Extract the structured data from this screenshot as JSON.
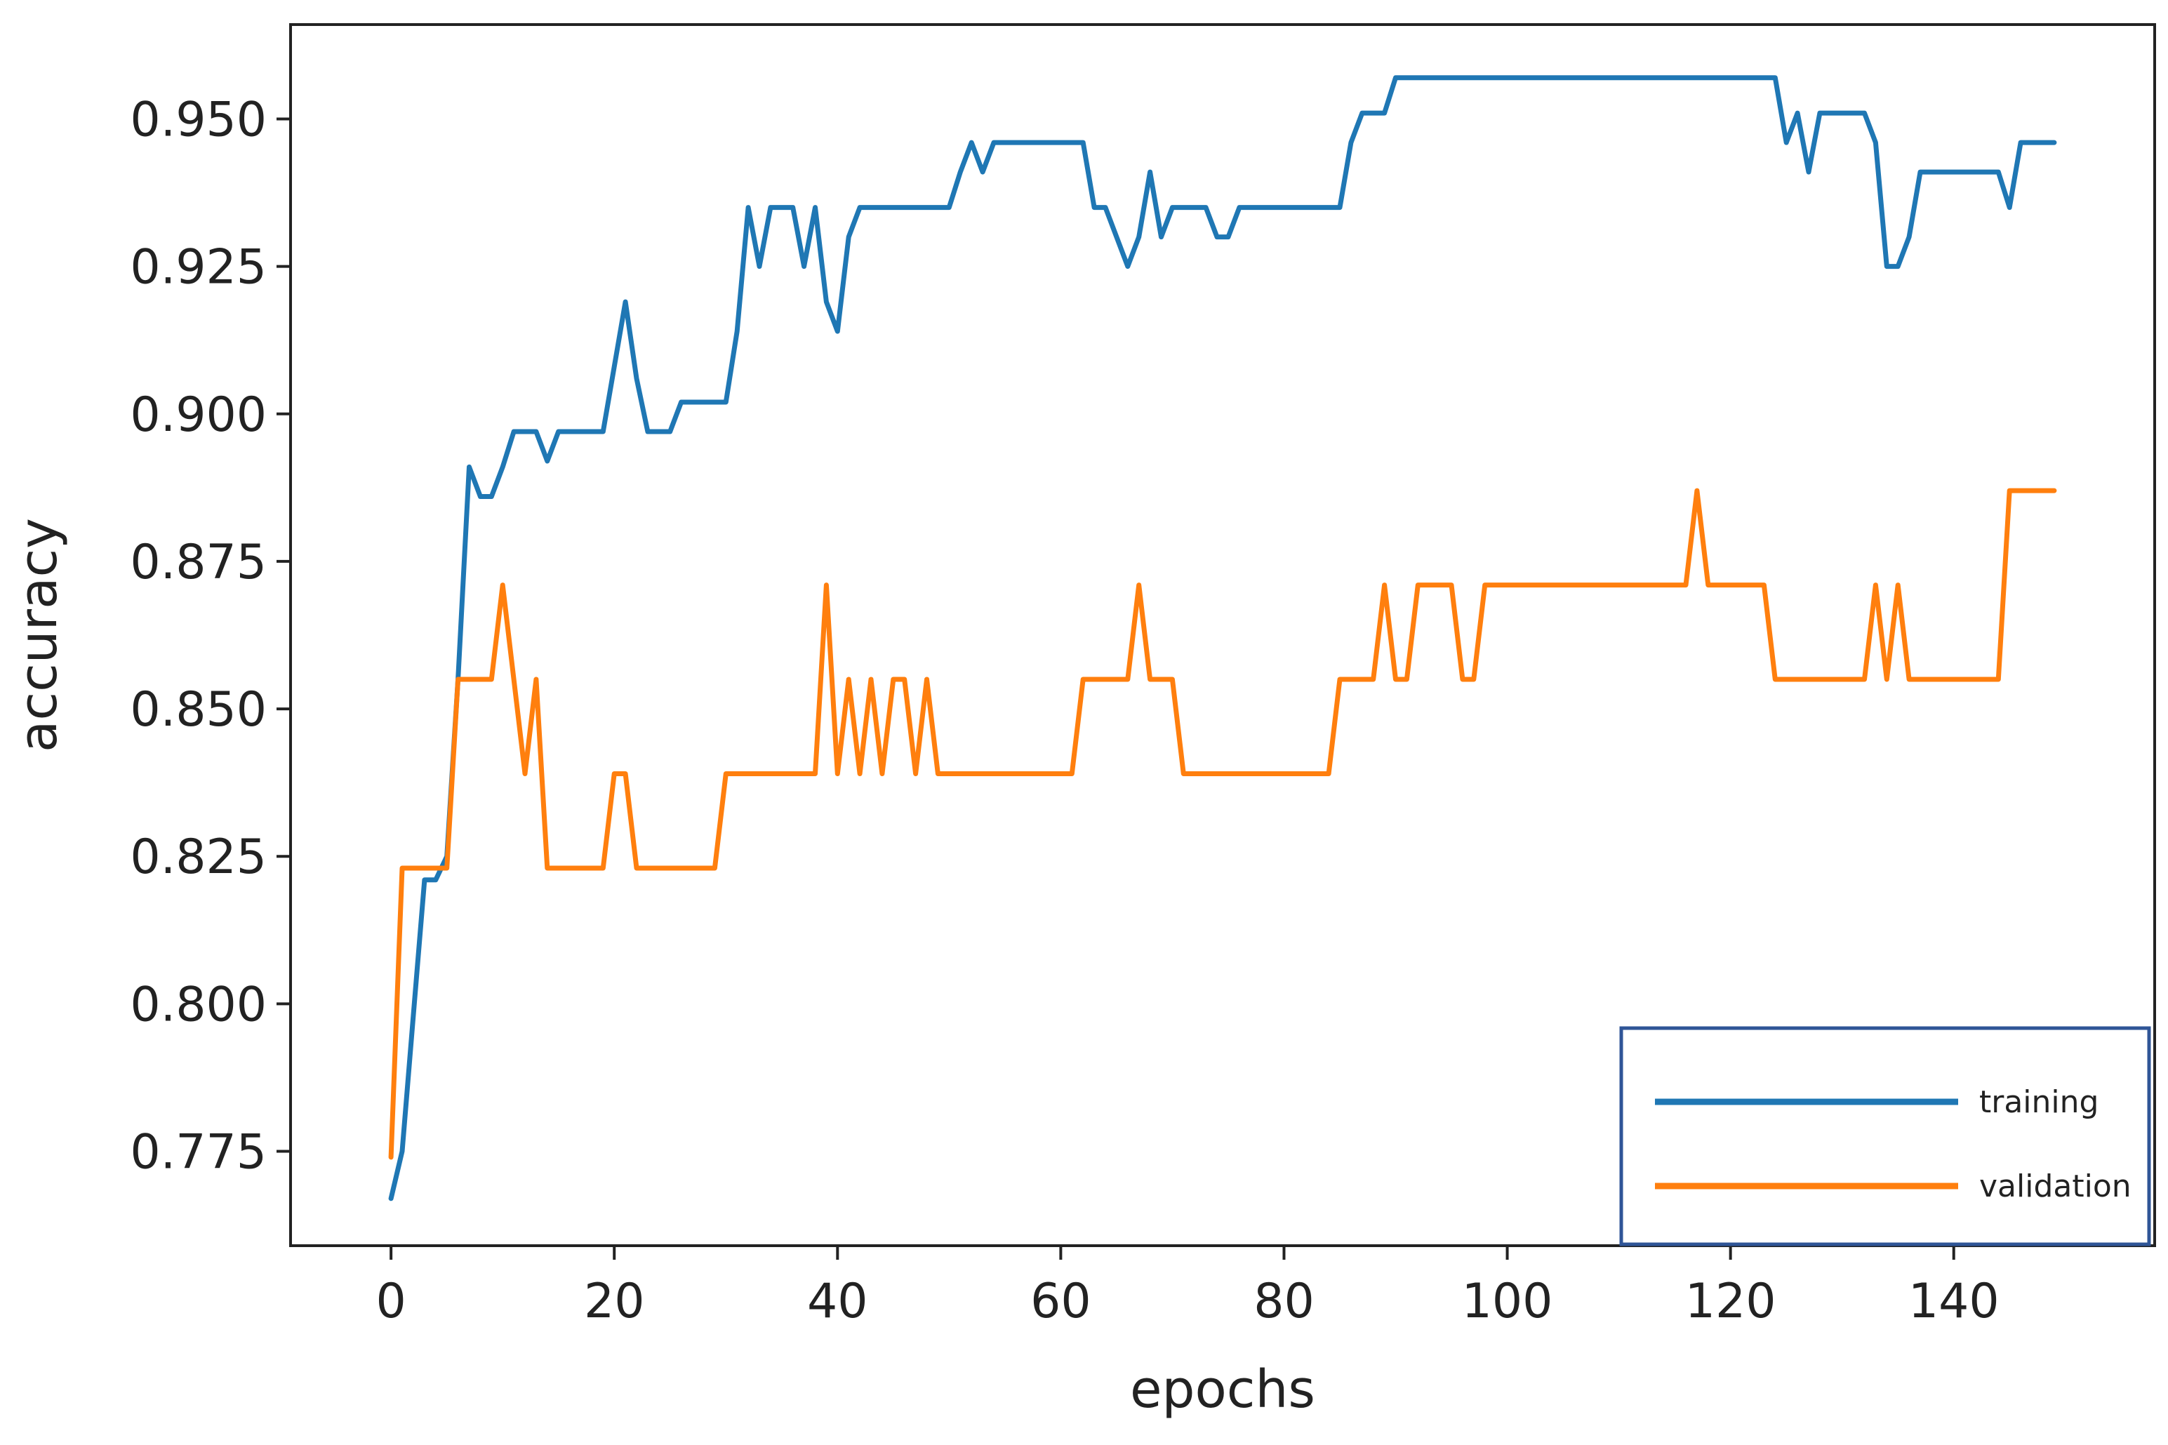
{
  "chart_data": {
    "type": "line",
    "title": "",
    "xlabel": "epochs",
    "ylabel": "accuracy",
    "xlim": [
      -9,
      158
    ],
    "ylim": [
      0.759,
      0.966
    ],
    "xticks": [
      0,
      20,
      40,
      60,
      80,
      100,
      120,
      140
    ],
    "xtick_labels": [
      "0",
      "20",
      "40",
      "60",
      "80",
      "100",
      "120",
      "140"
    ],
    "yticks": [
      0.775,
      0.8,
      0.825,
      0.85,
      0.875,
      0.9,
      0.925,
      0.95
    ],
    "ytick_labels": [
      "0.775",
      "0.800",
      "0.825",
      "0.850",
      "0.875",
      "0.900",
      "0.925",
      "0.950"
    ],
    "grid": false,
    "legend_position": "bottom-right",
    "series": [
      {
        "name": "training",
        "color": "#1f77b4",
        "x": [
          0,
          1,
          2,
          3,
          4,
          5,
          6,
          7,
          8,
          9,
          10,
          11,
          12,
          13,
          14,
          15,
          16,
          17,
          18,
          19,
          20,
          21,
          22,
          23,
          24,
          25,
          26,
          27,
          28,
          29,
          30,
          31,
          32,
          33,
          34,
          35,
          36,
          37,
          38,
          39,
          40,
          41,
          42,
          43,
          44,
          45,
          46,
          47,
          48,
          49,
          50,
          51,
          52,
          53,
          54,
          55,
          56,
          57,
          58,
          59,
          60,
          61,
          62,
          63,
          64,
          65,
          66,
          67,
          68,
          69,
          70,
          71,
          72,
          73,
          74,
          75,
          76,
          77,
          78,
          79,
          80,
          81,
          82,
          83,
          84,
          85,
          86,
          87,
          88,
          89,
          90,
          91,
          92,
          93,
          94,
          95,
          96,
          97,
          98,
          99,
          100,
          101,
          102,
          103,
          104,
          105,
          106,
          107,
          108,
          109,
          110,
          111,
          112,
          113,
          114,
          115,
          116,
          117,
          118,
          119,
          120,
          121,
          122,
          123,
          124,
          125,
          126,
          127,
          128,
          129,
          130,
          131,
          132,
          133,
          134,
          135,
          136,
          137,
          138,
          139,
          140,
          141,
          142,
          143,
          144,
          145,
          146,
          147,
          148,
          149
        ],
        "y": [
          0.767,
          0.775,
          0.798,
          0.821,
          0.821,
          0.825,
          0.855,
          0.891,
          0.886,
          0.886,
          0.891,
          0.897,
          0.897,
          0.897,
          0.892,
          0.897,
          0.897,
          0.897,
          0.897,
          0.897,
          0.908,
          0.919,
          0.906,
          0.897,
          0.897,
          0.897,
          0.902,
          0.902,
          0.902,
          0.902,
          0.902,
          0.914,
          0.935,
          0.925,
          0.935,
          0.935,
          0.935,
          0.925,
          0.935,
          0.919,
          0.914,
          0.93,
          0.935,
          0.935,
          0.935,
          0.935,
          0.935,
          0.935,
          0.935,
          0.935,
          0.935,
          0.941,
          0.946,
          0.941,
          0.946,
          0.946,
          0.946,
          0.946,
          0.946,
          0.946,
          0.946,
          0.946,
          0.946,
          0.935,
          0.935,
          0.93,
          0.925,
          0.93,
          0.941,
          0.93,
          0.935,
          0.935,
          0.935,
          0.935,
          0.93,
          0.93,
          0.935,
          0.935,
          0.935,
          0.935,
          0.935,
          0.935,
          0.935,
          0.935,
          0.935,
          0.935,
          0.946,
          0.951,
          0.951,
          0.951,
          0.957,
          0.957,
          0.957,
          0.957,
          0.957,
          0.957,
          0.957,
          0.957,
          0.957,
          0.957,
          0.957,
          0.957,
          0.957,
          0.957,
          0.957,
          0.957,
          0.957,
          0.957,
          0.957,
          0.957,
          0.957,
          0.957,
          0.957,
          0.957,
          0.957,
          0.957,
          0.957,
          0.957,
          0.957,
          0.957,
          0.957,
          0.957,
          0.957,
          0.957,
          0.957,
          0.946,
          0.951,
          0.941,
          0.951,
          0.951,
          0.951,
          0.951,
          0.951,
          0.946,
          0.925,
          0.925,
          0.93,
          0.941,
          0.941,
          0.941,
          0.941,
          0.941,
          0.941,
          0.941,
          0.941,
          0.935,
          0.946,
          0.946,
          0.946,
          0.946
        ]
      },
      {
        "name": "validation",
        "color": "#ff7f0e",
        "x": [
          0,
          1,
          2,
          3,
          4,
          5,
          6,
          7,
          8,
          9,
          10,
          11,
          12,
          13,
          14,
          15,
          16,
          17,
          18,
          19,
          20,
          21,
          22,
          23,
          24,
          25,
          26,
          27,
          28,
          29,
          30,
          31,
          32,
          33,
          34,
          35,
          36,
          37,
          38,
          39,
          40,
          41,
          42,
          43,
          44,
          45,
          46,
          47,
          48,
          49,
          50,
          51,
          52,
          53,
          54,
          55,
          56,
          57,
          58,
          59,
          60,
          61,
          62,
          63,
          64,
          65,
          66,
          67,
          68,
          69,
          70,
          71,
          72,
          73,
          74,
          75,
          76,
          77,
          78,
          79,
          80,
          81,
          82,
          83,
          84,
          85,
          86,
          87,
          88,
          89,
          90,
          91,
          92,
          93,
          94,
          95,
          96,
          97,
          98,
          99,
          100,
          101,
          102,
          103,
          104,
          105,
          106,
          107,
          108,
          109,
          110,
          111,
          112,
          113,
          114,
          115,
          116,
          117,
          118,
          119,
          120,
          121,
          122,
          123,
          124,
          125,
          126,
          127,
          128,
          129,
          130,
          131,
          132,
          133,
          134,
          135,
          136,
          137,
          138,
          139,
          140,
          141,
          142,
          143,
          144,
          145,
          146,
          147,
          148,
          149
        ],
        "y": [
          0.774,
          0.823,
          0.823,
          0.823,
          0.823,
          0.823,
          0.855,
          0.855,
          0.855,
          0.855,
          0.871,
          0.855,
          0.839,
          0.855,
          0.823,
          0.823,
          0.823,
          0.823,
          0.823,
          0.823,
          0.839,
          0.839,
          0.823,
          0.823,
          0.823,
          0.823,
          0.823,
          0.823,
          0.823,
          0.823,
          0.839,
          0.839,
          0.839,
          0.839,
          0.839,
          0.839,
          0.839,
          0.839,
          0.839,
          0.871,
          0.839,
          0.855,
          0.839,
          0.855,
          0.839,
          0.855,
          0.855,
          0.839,
          0.855,
          0.839,
          0.839,
          0.839,
          0.839,
          0.839,
          0.839,
          0.839,
          0.839,
          0.839,
          0.839,
          0.839,
          0.839,
          0.839,
          0.855,
          0.855,
          0.855,
          0.855,
          0.855,
          0.871,
          0.855,
          0.855,
          0.855,
          0.839,
          0.839,
          0.839,
          0.839,
          0.839,
          0.839,
          0.839,
          0.839,
          0.839,
          0.839,
          0.839,
          0.839,
          0.839,
          0.839,
          0.855,
          0.855,
          0.855,
          0.855,
          0.871,
          0.855,
          0.855,
          0.871,
          0.871,
          0.871,
          0.871,
          0.855,
          0.855,
          0.871,
          0.871,
          0.871,
          0.871,
          0.871,
          0.871,
          0.871,
          0.871,
          0.871,
          0.871,
          0.871,
          0.871,
          0.871,
          0.871,
          0.871,
          0.871,
          0.871,
          0.871,
          0.871,
          0.887,
          0.871,
          0.871,
          0.871,
          0.871,
          0.871,
          0.871,
          0.855,
          0.855,
          0.855,
          0.855,
          0.855,
          0.855,
          0.855,
          0.855,
          0.855,
          0.871,
          0.855,
          0.871,
          0.855,
          0.855,
          0.855,
          0.855,
          0.855,
          0.855,
          0.855,
          0.855,
          0.855,
          0.887,
          0.887,
          0.887,
          0.887,
          0.887
        ]
      }
    ]
  }
}
